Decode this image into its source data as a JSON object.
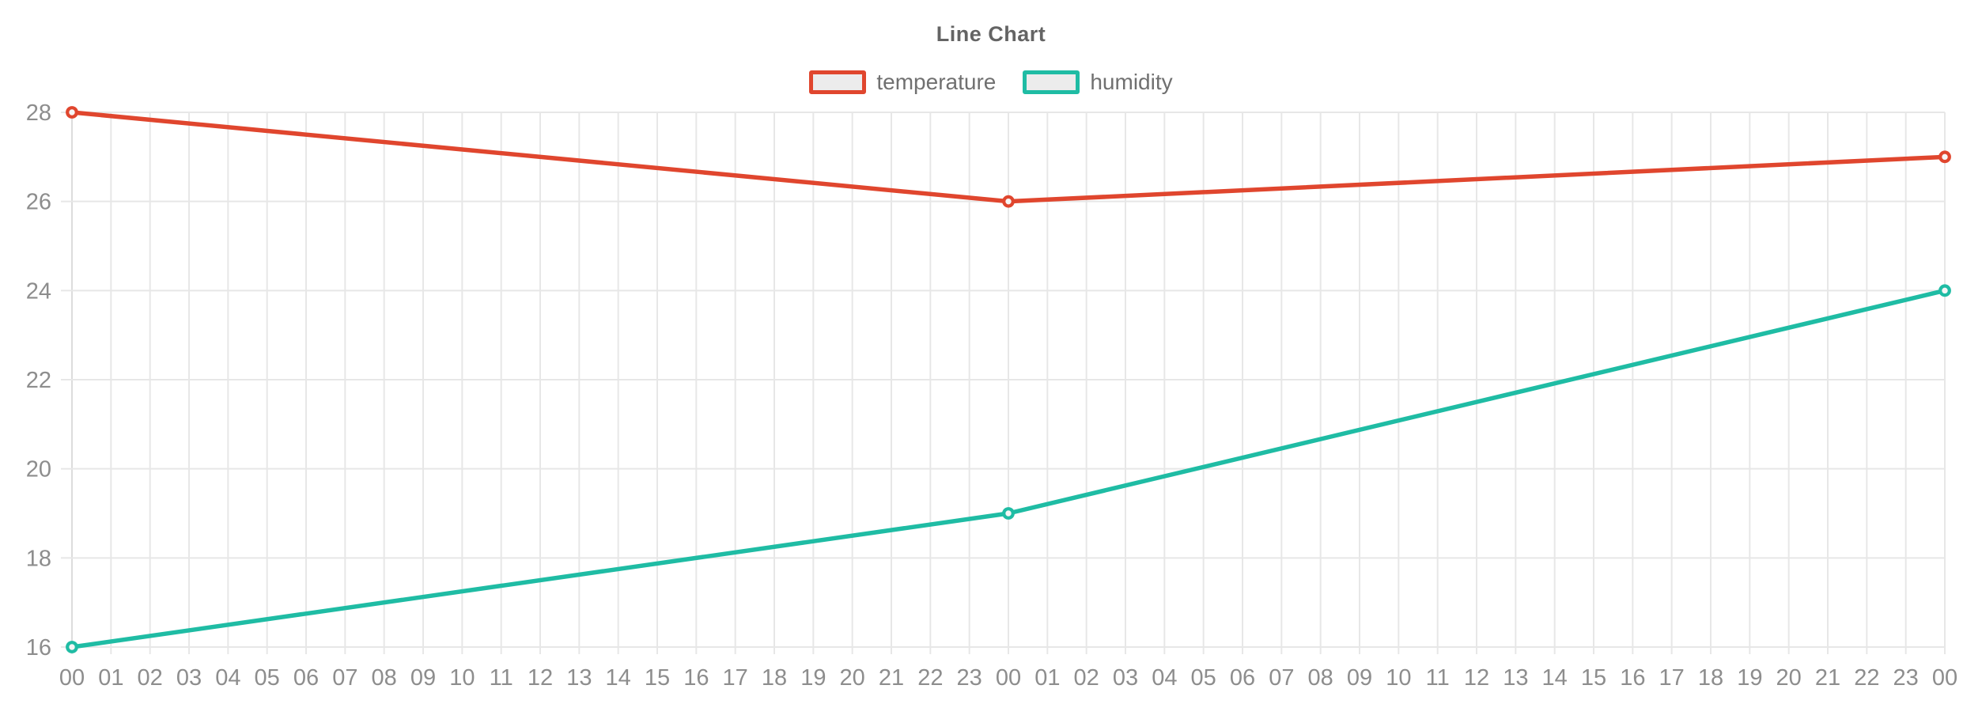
{
  "chart_data": {
    "type": "line",
    "title": "Line Chart",
    "legend_position": "top-center",
    "grid": true,
    "ylim": [
      16,
      28
    ],
    "y_tick_labels": [
      "16",
      "18",
      "20",
      "22",
      "24",
      "26",
      "28"
    ],
    "y_ticks": [
      16,
      18,
      20,
      22,
      24,
      26,
      28
    ],
    "x_tick_labels": [
      "00",
      "01",
      "02",
      "03",
      "04",
      "05",
      "06",
      "07",
      "08",
      "09",
      "10",
      "11",
      "12",
      "13",
      "14",
      "15",
      "16",
      "17",
      "18",
      "19",
      "20",
      "21",
      "22",
      "23",
      "00",
      "01",
      "02",
      "03",
      "04",
      "05",
      "06",
      "07",
      "08",
      "09",
      "10",
      "11",
      "12",
      "13",
      "14",
      "15",
      "16",
      "17",
      "18",
      "19",
      "20",
      "21",
      "22",
      "23",
      "00"
    ],
    "series": [
      {
        "name": "temperature",
        "color": "#e0462e",
        "points_by_tick_index": [
          [
            0,
            28
          ],
          [
            24,
            26
          ],
          [
            48,
            27
          ]
        ]
      },
      {
        "name": "humidity",
        "color": "#1fbca4",
        "points_by_tick_index": [
          [
            0,
            16
          ],
          [
            24,
            19
          ],
          [
            48,
            24
          ]
        ]
      }
    ],
    "colors": {
      "background": "#ffffff",
      "grid_line": "#e7e7e7",
      "axis_line": "#dadada",
      "tick_label": "#8d8d8d",
      "title_text": "#646464",
      "legend_text": "#707070",
      "legend_swatch_fill": "#ececec",
      "marker_fill": "#f6f6f6"
    }
  }
}
